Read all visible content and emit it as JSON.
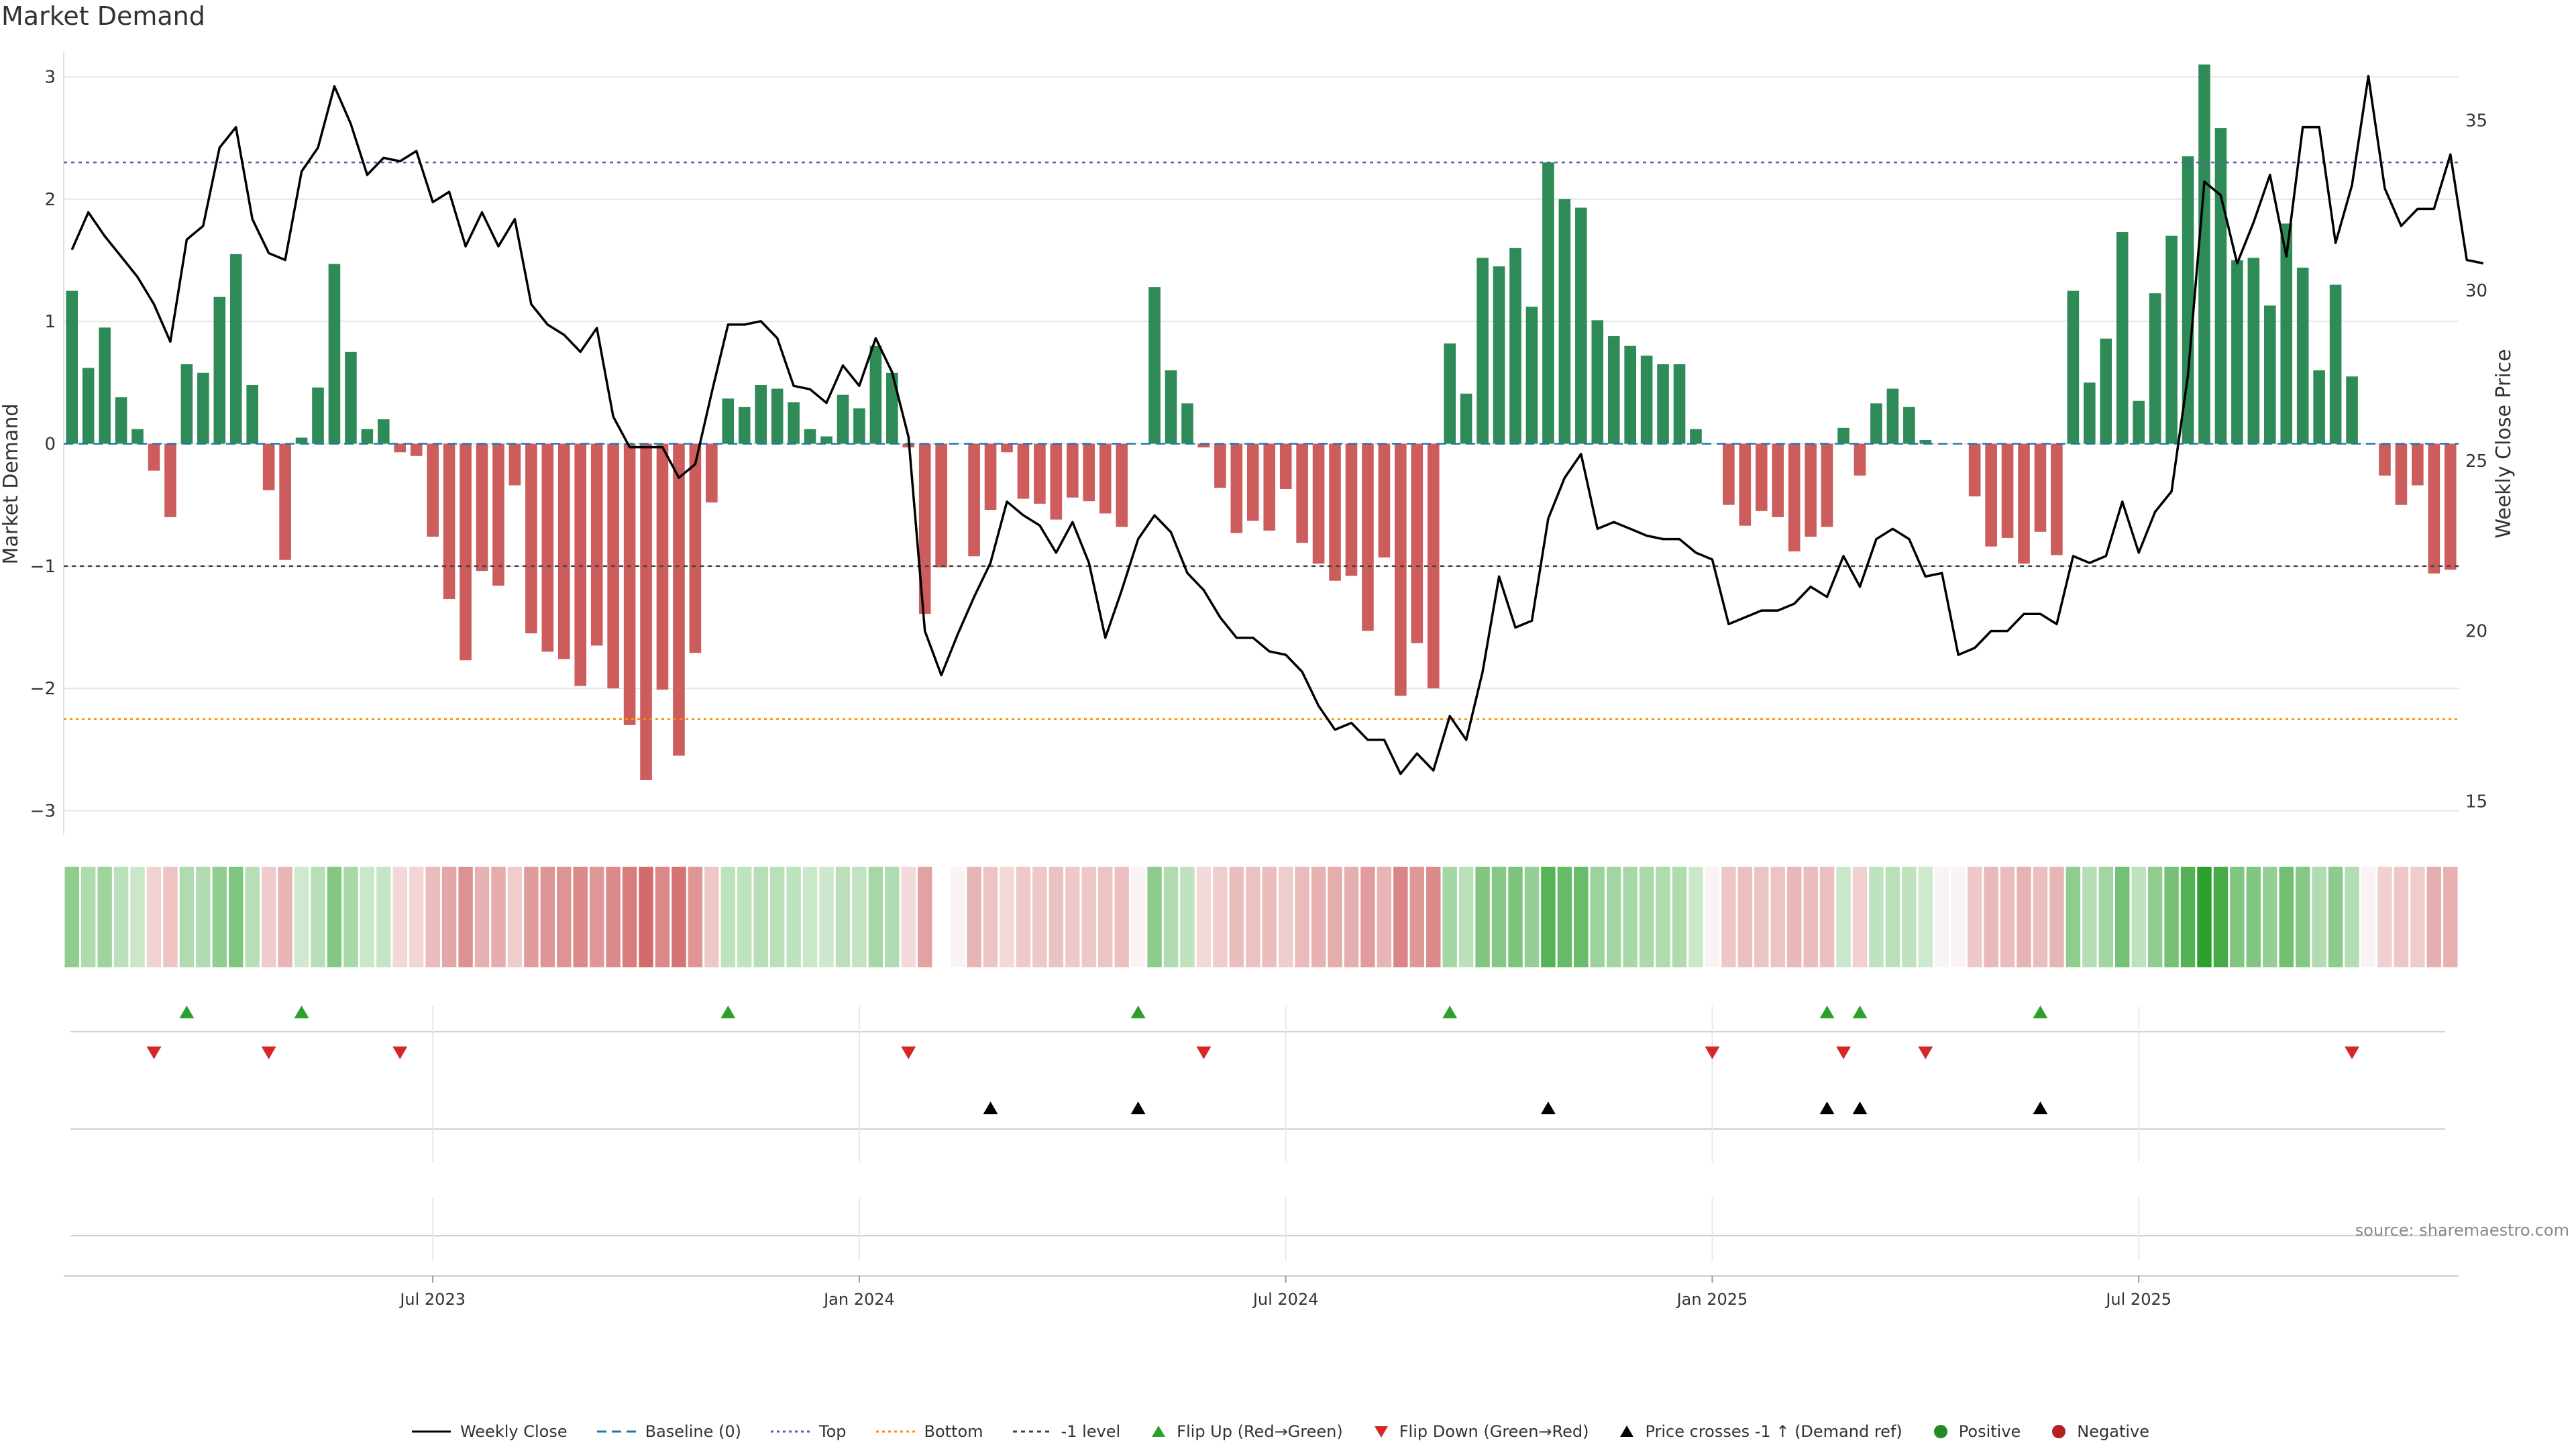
{
  "title": "Market Demand",
  "source": "source: sharemaestro.com",
  "colors": {
    "positive": "#2e8b57",
    "negative": "#cd5c5c",
    "price": "#000000",
    "baseline": "#1f77b4",
    "top": "#5c5c99",
    "bottom": "#ff8c00",
    "minus1": "#444444",
    "flip_up": "#2ca02c",
    "flip_down": "#d62728",
    "cross": "#000000",
    "grid": "#e6e6e6"
  },
  "chart_data": {
    "type": "bar+line",
    "start_date": "2023-01-20",
    "interval_days": 7,
    "xlabel": "",
    "ylabel_left": "Market Demand",
    "ylabel_right": "Weekly Close Price",
    "ylim_left": [
      -3.2,
      3.2
    ],
    "ylim_right": [
      14,
      37
    ],
    "yticks_left": [
      3,
      2,
      1,
      0,
      -1,
      -2,
      -3
    ],
    "ytick_labels_left": [
      "3",
      "2",
      "1",
      "0",
      "−1",
      "−2",
      "−3"
    ],
    "yticks_right": [
      35,
      30,
      25,
      20,
      15
    ],
    "ytick_labels_right": [
      "35",
      "30",
      "25",
      "20",
      "15"
    ],
    "x_ticks": [
      {
        "label": "Jul 2023",
        "index": 22
      },
      {
        "label": "Jan 2024",
        "index": 48
      },
      {
        "label": "Jul 2024",
        "index": 74
      },
      {
        "label": "Jan 2025",
        "index": 100
      },
      {
        "label": "Jul 2025",
        "index": 126
      }
    ],
    "reference_lines": {
      "top": 2.3,
      "bottom": -2.25,
      "minus1": -1,
      "baseline": 0
    },
    "demand": [
      1.25,
      0.62,
      0.95,
      0.38,
      0.12,
      -0.22,
      -0.6,
      0.65,
      0.58,
      1.2,
      1.55,
      0.48,
      -0.38,
      -0.95,
      0.05,
      0.46,
      1.47,
      0.75,
      0.12,
      0.2,
      -0.07,
      -0.1,
      -0.76,
      -1.27,
      -1.77,
      -1.04,
      -1.16,
      -0.34,
      -1.55,
      -1.7,
      -1.76,
      -1.98,
      -1.65,
      -2.0,
      -2.3,
      -2.75,
      -2.01,
      -2.55,
      -1.71,
      -0.48,
      0.37,
      0.3,
      0.48,
      0.45,
      0.34,
      0.12,
      0.06,
      0.4,
      0.29,
      0.8,
      0.58,
      -0.03,
      -1.39,
      -1.01,
      0.0,
      -0.92,
      -0.54,
      -0.07,
      -0.45,
      -0.49,
      -0.62,
      -0.44,
      -0.47,
      -0.57,
      -0.68,
      0.0,
      1.28,
      0.6,
      0.33,
      -0.03,
      -0.36,
      -0.73,
      -0.63,
      -0.71,
      -0.37,
      -0.81,
      -0.98,
      -1.12,
      -1.08,
      -1.53,
      -0.93,
      -2.06,
      -1.63,
      -2.0,
      0.82,
      0.41,
      1.52,
      1.45,
      1.6,
      1.12,
      2.3,
      2.0,
      1.93,
      1.01,
      0.88,
      0.8,
      0.72,
      0.65,
      0.65,
      0.12,
      0.0,
      -0.5,
      -0.67,
      -0.55,
      -0.6,
      -0.88,
      -0.76,
      -0.68,
      0.13,
      -0.26,
      0.33,
      0.45,
      0.3,
      0.03,
      0.0,
      0.0,
      -0.43,
      -0.84,
      -0.77,
      -0.98,
      -0.72,
      -0.91,
      1.25,
      0.5,
      0.86,
      1.73,
      0.35,
      1.23,
      1.7,
      2.35,
      3.1,
      2.58,
      1.5,
      1.52,
      1.13,
      1.8,
      1.44,
      0.6,
      1.3,
      0.55,
      0.0,
      -0.26,
      -0.5,
      -0.34,
      -1.06,
      -1.03
    ],
    "price": [
      31.2,
      32.3,
      31.6,
      31.0,
      30.4,
      29.6,
      28.5,
      31.5,
      31.9,
      34.2,
      34.8,
      32.1,
      31.1,
      30.9,
      33.5,
      34.2,
      36.0,
      34.9,
      33.4,
      33.9,
      33.8,
      34.1,
      32.6,
      32.9,
      31.3,
      32.3,
      31.3,
      32.1,
      29.6,
      29.0,
      28.7,
      28.2,
      28.9,
      26.3,
      25.4,
      25.4,
      25.4,
      24.5,
      24.9,
      27.0,
      29.0,
      29.0,
      29.1,
      28.6,
      27.2,
      27.1,
      26.7,
      27.8,
      27.2,
      28.6,
      27.6,
      25.7,
      20.0,
      18.7,
      19.9,
      21.0,
      22.0,
      23.8,
      23.4,
      23.1,
      22.3,
      23.2,
      22.0,
      19.8,
      21.2,
      22.7,
      23.4,
      22.9,
      21.7,
      21.2,
      20.4,
      19.8,
      19.8,
      19.4,
      19.3,
      18.8,
      17.8,
      17.1,
      17.3,
      16.8,
      16.8,
      15.8,
      16.4,
      15.9,
      17.5,
      16.8,
      18.8,
      21.6,
      20.1,
      20.3,
      23.3,
      24.5,
      25.2,
      23.0,
      23.2,
      23.0,
      22.8,
      22.7,
      22.7,
      22.3,
      22.1,
      20.2,
      20.4,
      20.6,
      20.6,
      20.8,
      21.3,
      21.0,
      22.2,
      21.3,
      22.7,
      23.0,
      22.7,
      21.6,
      21.7,
      19.3,
      19.5,
      20.0,
      20.0,
      20.5,
      20.5,
      20.2,
      22.2,
      22.0,
      22.2,
      23.8,
      22.3,
      23.5,
      24.1,
      27.5,
      33.2,
      32.8,
      30.8,
      32.0,
      33.4,
      31.0,
      34.8,
      34.8,
      31.4,
      33.1,
      36.3,
      33.0,
      31.9,
      32.4,
      32.4,
      34.0,
      30.9,
      30.8
    ],
    "flip_up_indices": [
      7,
      14,
      40,
      65,
      84,
      107,
      109,
      120
    ],
    "flip_down_indices": [
      5,
      12,
      20,
      51,
      69,
      100,
      108,
      113,
      139
    ],
    "cross_up_indices": [
      56,
      65,
      90,
      107,
      109,
      120
    ],
    "heatmap_gaps": [
      53
    ],
    "legend": [
      "Weekly Close",
      "Baseline (0)",
      "Top",
      "Bottom",
      "-1 level",
      "Flip Up (Red→Green)",
      "Flip Down (Green→Red)",
      "Price crosses -1 ↑ (Demand ref)",
      "Positive",
      "Negative"
    ]
  }
}
